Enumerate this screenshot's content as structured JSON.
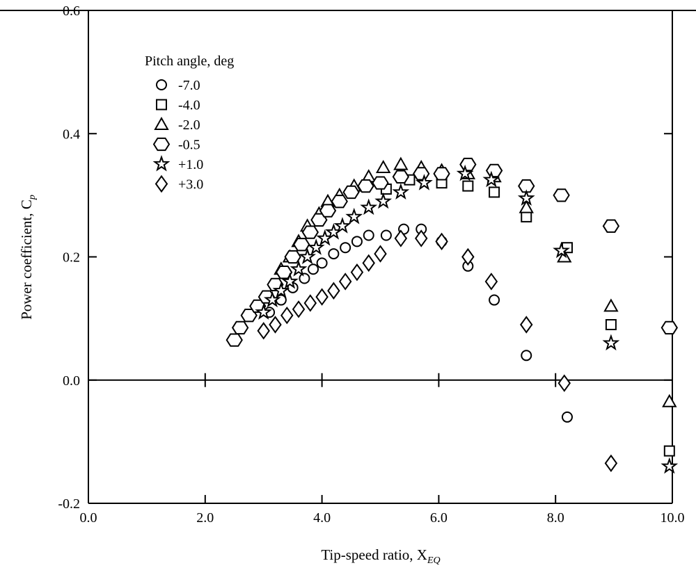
{
  "chart_data": {
    "type": "scatter",
    "xlabel": "Tip-speed ratio, X",
    "xlabel_sub": "EQ",
    "ylabel": "Power coefficient, C",
    "ylabel_sub": "p",
    "xlim": [
      0,
      10
    ],
    "ylim": [
      -0.2,
      0.6
    ],
    "x_ticks": [
      "0.0",
      "2.0",
      "4.0",
      "6.0",
      "8.0",
      "10.0"
    ],
    "y_ticks": [
      "-0.2",
      "0.0",
      "0.2",
      "0.4",
      "0.6"
    ],
    "grid": false,
    "legend": {
      "title": "Pitch angle, deg",
      "placement": "top-left"
    },
    "color": "#000000",
    "series": [
      {
        "name": "-7.0",
        "marker": "circle",
        "x": [
          3.1,
          3.3,
          3.5,
          3.7,
          3.85,
          4.0,
          4.2,
          4.4,
          4.6,
          4.8,
          5.1,
          5.4,
          5.7,
          6.05,
          6.5,
          6.95,
          7.5,
          8.2
        ],
        "y": [
          0.11,
          0.13,
          0.15,
          0.165,
          0.18,
          0.19,
          0.205,
          0.215,
          0.225,
          0.235,
          0.235,
          0.245,
          0.245,
          0.225,
          0.185,
          0.13,
          0.04,
          -0.06
        ]
      },
      {
        "name": "-4.0",
        "marker": "square",
        "x": [
          5.1,
          5.5,
          6.05,
          6.5,
          6.95,
          7.5,
          8.2,
          8.95,
          9.95
        ],
        "y": [
          0.31,
          0.325,
          0.32,
          0.315,
          0.305,
          0.265,
          0.215,
          0.09,
          -0.115
        ]
      },
      {
        "name": "-2.0",
        "marker": "triangle",
        "x": [
          3.3,
          3.45,
          3.6,
          3.75,
          3.95,
          4.1,
          4.3,
          4.55,
          4.8,
          5.05,
          5.35,
          5.7,
          6.05,
          6.5,
          6.95,
          7.5,
          8.15,
          8.95,
          9.95
        ],
        "y": [
          0.18,
          0.2,
          0.225,
          0.25,
          0.27,
          0.29,
          0.3,
          0.315,
          0.33,
          0.345,
          0.35,
          0.345,
          0.34,
          0.335,
          0.33,
          0.28,
          0.2,
          0.12,
          -0.035
        ]
      },
      {
        "name": "-0.5",
        "marker": "hexagon",
        "x": [
          2.5,
          2.6,
          2.75,
          2.9,
          3.05,
          3.2,
          3.35,
          3.5,
          3.65,
          3.8,
          3.95,
          4.1,
          4.3,
          4.5,
          4.75,
          5.0,
          5.35,
          5.7,
          6.05,
          6.5,
          6.95,
          7.5,
          8.1,
          8.95,
          9.95
        ],
        "y": [
          0.065,
          0.085,
          0.105,
          0.12,
          0.135,
          0.155,
          0.175,
          0.2,
          0.22,
          0.24,
          0.26,
          0.275,
          0.29,
          0.305,
          0.315,
          0.32,
          0.33,
          0.335,
          0.335,
          0.35,
          0.34,
          0.315,
          0.3,
          0.25,
          0.085
        ]
      },
      {
        "name": "+1.0",
        "marker": "star",
        "x": [
          3.0,
          3.15,
          3.3,
          3.45,
          3.6,
          3.75,
          3.9,
          4.05,
          4.2,
          4.35,
          4.55,
          4.8,
          5.05,
          5.35,
          5.75,
          6.45,
          6.9,
          7.5,
          8.1,
          8.95,
          9.95
        ],
        "y": [
          0.11,
          0.13,
          0.145,
          0.16,
          0.18,
          0.2,
          0.215,
          0.23,
          0.24,
          0.25,
          0.265,
          0.28,
          0.29,
          0.305,
          0.32,
          0.335,
          0.325,
          0.295,
          0.21,
          0.06,
          -0.14
        ]
      },
      {
        "name": "+3.0",
        "marker": "diamond",
        "x": [
          3.0,
          3.2,
          3.4,
          3.6,
          3.8,
          4.0,
          4.2,
          4.4,
          4.6,
          4.8,
          5.0,
          5.35,
          5.7,
          6.05,
          6.5,
          6.9,
          7.5,
          8.15,
          8.95
        ],
        "y": [
          0.08,
          0.09,
          0.105,
          0.115,
          0.125,
          0.135,
          0.145,
          0.16,
          0.175,
          0.19,
          0.205,
          0.23,
          0.23,
          0.225,
          0.2,
          0.16,
          0.09,
          -0.005,
          -0.135
        ]
      }
    ]
  }
}
